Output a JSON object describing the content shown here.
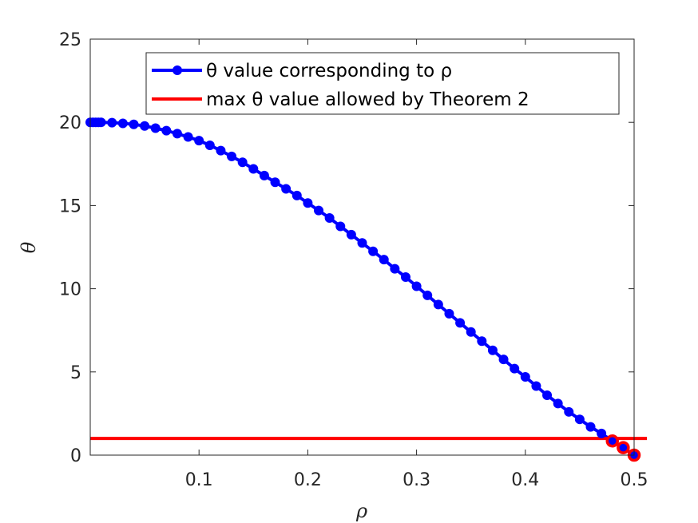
{
  "chart_data": {
    "type": "line",
    "title": "",
    "xlabel": "ρ",
    "ylabel": "θ",
    "xlim": [
      0,
      0.5
    ],
    "ylim": [
      0,
      25
    ],
    "xticks": [
      0.1,
      0.2,
      0.3,
      0.4,
      0.5
    ],
    "xtick_labels": [
      "0.1",
      "0.2",
      "0.3",
      "0.4",
      "0.5"
    ],
    "yticks": [
      0,
      5,
      10,
      15,
      20,
      25
    ],
    "ytick_labels": [
      "0",
      "5",
      "10",
      "15",
      "20",
      "25"
    ],
    "grid": false,
    "legend_position": "top-right",
    "series": [
      {
        "name": "θ value corresponding to ρ",
        "color": "#0000ff",
        "marker": "circle",
        "highlight_color": "#ff0000",
        "highlighted_x": [
          0.48,
          0.49,
          0.5
        ],
        "x": [
          0,
          0.0025,
          0.005,
          0.0075,
          0.01,
          0.02,
          0.03,
          0.04,
          0.05,
          0.06,
          0.07,
          0.08,
          0.09,
          0.1,
          0.11,
          0.12,
          0.13,
          0.14,
          0.15,
          0.16,
          0.17,
          0.18,
          0.19,
          0.2,
          0.21,
          0.22,
          0.23,
          0.24,
          0.25,
          0.26,
          0.27,
          0.28,
          0.29,
          0.3,
          0.31,
          0.32,
          0.33,
          0.34,
          0.35,
          0.36,
          0.37,
          0.38,
          0.39,
          0.4,
          0.41,
          0.42,
          0.43,
          0.44,
          0.45,
          0.46,
          0.47,
          0.48,
          0.49,
          0.5
        ],
        "y": [
          20,
          20,
          20,
          20,
          20,
          19.98,
          19.94,
          19.88,
          19.78,
          19.65,
          19.5,
          19.32,
          19.12,
          18.9,
          18.62,
          18.3,
          17.95,
          17.6,
          17.2,
          16.8,
          16.4,
          16.0,
          15.6,
          15.15,
          14.7,
          14.25,
          13.75,
          13.25,
          12.75,
          12.25,
          11.75,
          11.2,
          10.7,
          10.15,
          9.6,
          9.05,
          8.5,
          7.95,
          7.4,
          6.85,
          6.3,
          5.75,
          5.2,
          4.7,
          4.15,
          3.6,
          3.1,
          2.6,
          2.15,
          1.7,
          1.3,
          0.85,
          0.45,
          0
        ]
      },
      {
        "name": "max θ value allowed by Theorem 2",
        "color": "#ff0000",
        "x": [
          0,
          0.5
        ],
        "y": [
          1,
          1
        ]
      }
    ],
    "legend": [
      "θ value corresponding to ρ",
      "max θ value allowed by Theorem 2"
    ]
  }
}
